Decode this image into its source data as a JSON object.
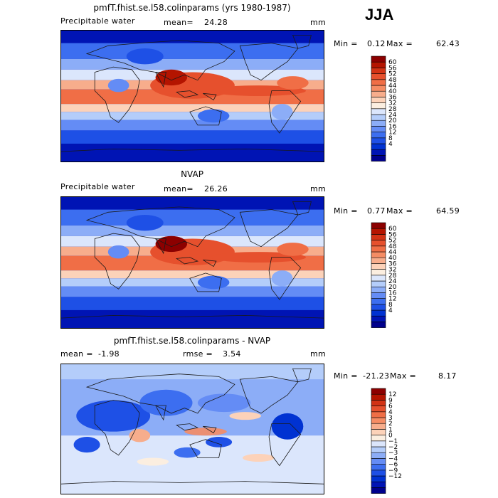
{
  "season": "JJA",
  "palettes": {
    "pw": [
      "#00008c",
      "#0014b4",
      "#0032d2",
      "#1e50e6",
      "#3c6ef0",
      "#648cf5",
      "#8cadf7",
      "#b4cdfa",
      "#dbe6fc",
      "#fbeee0",
      "#fcd2b9",
      "#f7ad8c",
      "#f58c64",
      "#f06e46",
      "#e6502d",
      "#d23214",
      "#b41400",
      "#8c0000"
    ],
    "diff": [
      "#00008c",
      "#0014b4",
      "#0032d2",
      "#1e50e6",
      "#3c6ef0",
      "#648cf5",
      "#8cadf7",
      "#b4cdfa",
      "#dbe6fc",
      "#fbeee0",
      "#fcd2b9",
      "#f7ad8c",
      "#f58c64",
      "#f06e46",
      "#e6502d",
      "#d23214",
      "#b41400",
      "#8c0000"
    ]
  },
  "panels": [
    {
      "title": "pmfT.fhist.se.l58.colinparams (yrs 1980-1987)",
      "field": "Precipitable water",
      "mean_label": "mean=",
      "mean": "24.28",
      "units": "mm",
      "min_label": "Min =",
      "min": "0.12",
      "max_label": "Max =",
      "max": "62.43",
      "colorbar_labels": [
        "60",
        "56",
        "52",
        "48",
        "44",
        "40",
        "36",
        "32",
        "28",
        "24",
        "20",
        "16",
        "12",
        "8",
        "4"
      ]
    },
    {
      "title": "NVAP",
      "field": "Precipitable water",
      "mean_label": "mean=",
      "mean": "26.26",
      "units": "mm",
      "min_label": "Min =",
      "min": "0.77",
      "max_label": "Max =",
      "max": "64.59",
      "colorbar_labels": [
        "60",
        "56",
        "52",
        "48",
        "44",
        "40",
        "36",
        "32",
        "28",
        "24",
        "20",
        "16",
        "12",
        "8",
        "4"
      ]
    },
    {
      "title": "pmfT.fhist.se.l58.colinparams - NVAP",
      "mean_label": "mean =",
      "mean": "-1.98",
      "rmse_label": "rmse =",
      "rmse": "3.54",
      "units": "mm",
      "min_label": "Min =",
      "min": "-21.23",
      "max_label": "Max =",
      "max": "8.17",
      "colorbar_labels": [
        "12",
        "9",
        "6",
        "4",
        "3",
        "2",
        "1",
        "0",
        "−1",
        "−2",
        "−3",
        "−4",
        "−6",
        "−9",
        "−12"
      ]
    }
  ],
  "chart_data": [
    {
      "type": "heatmap",
      "title": "pmfT.fhist.se.l58.colinparams (yrs 1980-1987)",
      "field": "Precipitable water",
      "units": "mm",
      "mean": 24.28,
      "min": 0.12,
      "max": 62.43,
      "contour_levels": [
        4,
        8,
        12,
        16,
        20,
        24,
        28,
        32,
        36,
        40,
        44,
        48,
        52,
        56,
        60
      ]
    },
    {
      "type": "heatmap",
      "title": "NVAP",
      "field": "Precipitable water",
      "units": "mm",
      "mean": 26.26,
      "min": 0.77,
      "max": 64.59,
      "contour_levels": [
        4,
        8,
        12,
        16,
        20,
        24,
        28,
        32,
        36,
        40,
        44,
        48,
        52,
        56,
        60
      ]
    },
    {
      "type": "heatmap",
      "title": "pmfT.fhist.se.l58.colinparams - NVAP",
      "units": "mm",
      "mean": -1.98,
      "rmse": 3.54,
      "min": -21.23,
      "max": 8.17,
      "contour_levels": [
        -12,
        -9,
        -6,
        -4,
        -3,
        -2,
        -1,
        0,
        1,
        2,
        3,
        4,
        6,
        9,
        12
      ]
    }
  ]
}
